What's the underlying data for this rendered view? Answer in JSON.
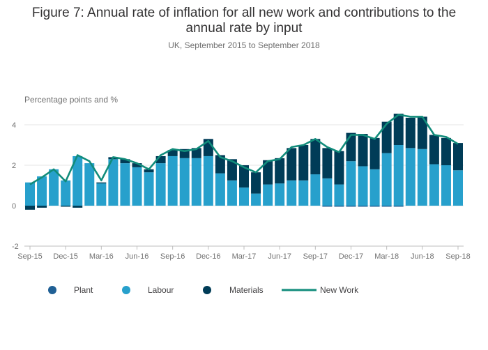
{
  "chart_data": {
    "type": "bar",
    "title_lines": [
      "Figure 7: Annual rate of inflation for all new work and contributions to the",
      "annual rate by input"
    ],
    "subtitle": "UK, September 2015 to September 2018",
    "ylabel": "Percentage points and %",
    "ylim": [
      -2,
      5
    ],
    "yticks": [
      -2,
      0,
      2,
      4
    ],
    "stacked": true,
    "categories": [
      "Sep-15",
      "Oct-15",
      "Nov-15",
      "Dec-15",
      "Jan-16",
      "Feb-16",
      "Mar-16",
      "Apr-16",
      "May-16",
      "Jun-16",
      "Jul-16",
      "Aug-16",
      "Sep-16",
      "Oct-16",
      "Nov-16",
      "Dec-16",
      "Jan-17",
      "Feb-17",
      "Mar-17",
      "Apr-17",
      "May-17",
      "Jun-17",
      "Jul-17",
      "Aug-17",
      "Sep-17",
      "Oct-17",
      "Nov-17",
      "Dec-17",
      "Jan-18",
      "Feb-18",
      "Mar-18",
      "Apr-18",
      "May-18",
      "Jun-18",
      "Jul-18",
      "Aug-18",
      "Sep-18"
    ],
    "xtick_labels": [
      "Sep-15",
      "Dec-15",
      "Mar-16",
      "Jun-16",
      "Sep-16",
      "Dec-16",
      "Mar-17",
      "Jun-17",
      "Sep-17",
      "Dec-17",
      "Mar-18",
      "Jun-18",
      "Sep-18"
    ],
    "series": [
      {
        "name": "Plant",
        "kind": "bar",
        "color": "#206095",
        "values": [
          0,
          0,
          0,
          0,
          0,
          0,
          0,
          0,
          0,
          0,
          0,
          0,
          0,
          0,
          0,
          0,
          0,
          0,
          0,
          0,
          0,
          0,
          0,
          0,
          0,
          -0.05,
          -0.05,
          -0.05,
          -0.05,
          -0.05,
          -0.05,
          -0.05,
          0,
          0,
          0,
          0,
          0
        ]
      },
      {
        "name": "Labour",
        "kind": "bar",
        "color": "#27a0cc",
        "values": [
          1.15,
          1.45,
          1.8,
          1.25,
          2.45,
          2.1,
          1.1,
          2.3,
          2.1,
          1.9,
          1.65,
          2.1,
          2.45,
          2.35,
          2.35,
          2.45,
          1.6,
          1.25,
          0.9,
          0.6,
          1.05,
          1.1,
          1.25,
          1.25,
          1.55,
          1.35,
          1.05,
          2.2,
          1.95,
          1.8,
          2.6,
          3.0,
          2.85,
          2.8,
          2.05,
          2.0,
          1.75
        ]
      },
      {
        "name": "Materials",
        "kind": "bar",
        "color": "#003c57",
        "values": [
          -0.2,
          -0.1,
          0,
          -0.05,
          -0.1,
          0,
          0.05,
          0.1,
          0.2,
          0.2,
          0.15,
          0.35,
          0.3,
          0.45,
          0.5,
          0.85,
          0.9,
          1.05,
          1.1,
          1.05,
          1.2,
          1.25,
          1.6,
          1.75,
          1.75,
          1.5,
          1.65,
          1.4,
          1.6,
          1.55,
          1.55,
          1.55,
          1.5,
          1.6,
          1.45,
          1.35,
          1.35
        ]
      },
      {
        "name": "New Work",
        "kind": "line",
        "color": "#118c7b",
        "values": [
          1.05,
          1.4,
          1.8,
          1.2,
          2.5,
          2.2,
          1.25,
          2.4,
          2.3,
          2.1,
          1.8,
          2.5,
          2.8,
          2.7,
          2.8,
          3.2,
          2.4,
          2.2,
          1.9,
          1.65,
          2.2,
          2.3,
          2.9,
          3.0,
          3.3,
          2.9,
          2.65,
          3.5,
          3.5,
          3.3,
          4.05,
          4.5,
          4.4,
          4.4,
          3.5,
          3.4,
          3.05
        ]
      }
    ]
  }
}
